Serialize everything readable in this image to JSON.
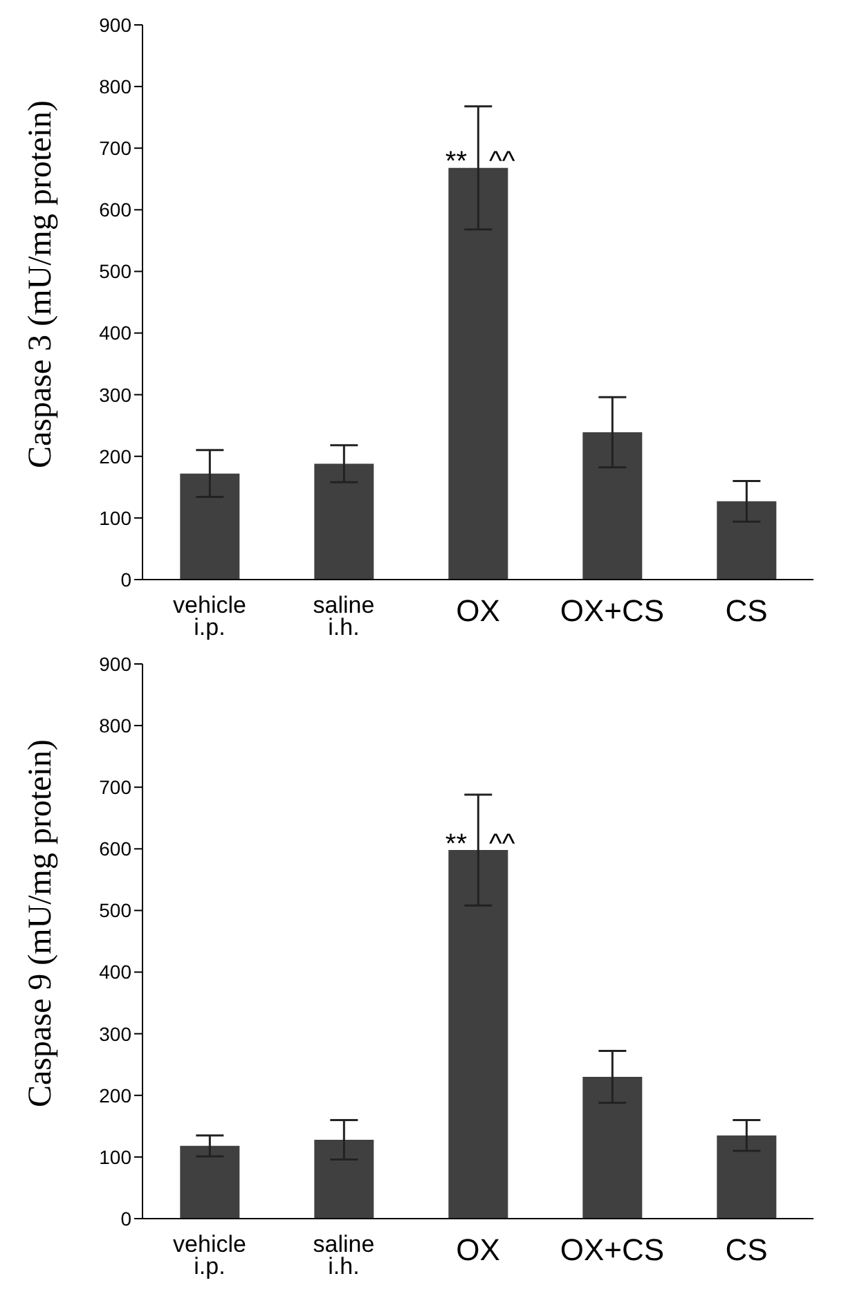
{
  "chart_data": [
    {
      "type": "bar",
      "ylabel": "Caspase 3 (mU/mg protein)",
      "categories": [
        "vehicle i.p.",
        "saline i.h.",
        "OX",
        "OX+CS",
        "CS"
      ],
      "values": [
        172,
        188,
        668,
        239,
        127
      ],
      "errors": [
        38,
        30,
        100,
        57,
        33
      ],
      "color": "#404040",
      "ylim": [
        0,
        900
      ],
      "yticks": [
        0,
        100,
        200,
        300,
        400,
        500,
        600,
        700,
        800,
        900
      ],
      "grid": false,
      "legend": false,
      "annotations": [
        {
          "text": "**",
          "x": "OX",
          "y": 680
        },
        {
          "text": "^^",
          "x": "OX",
          "y": 680
        }
      ]
    },
    {
      "type": "bar",
      "ylabel": "Caspase 9 (mU/mg protein)",
      "categories": [
        "vehicle i.p.",
        "saline i.h.",
        "OX",
        "OX+CS",
        "CS"
      ],
      "values": [
        118,
        128,
        598,
        230,
        135
      ],
      "errors": [
        17,
        32,
        90,
        42,
        25
      ],
      "color": "#404040",
      "ylim": [
        0,
        900
      ],
      "yticks": [
        0,
        100,
        200,
        300,
        400,
        500,
        600,
        700,
        800,
        900
      ],
      "grid": false,
      "legend": false,
      "annotations": [
        {
          "text": "**",
          "x": "OX",
          "y": 610
        },
        {
          "text": "^^",
          "x": "OX",
          "y": 610
        }
      ]
    }
  ]
}
